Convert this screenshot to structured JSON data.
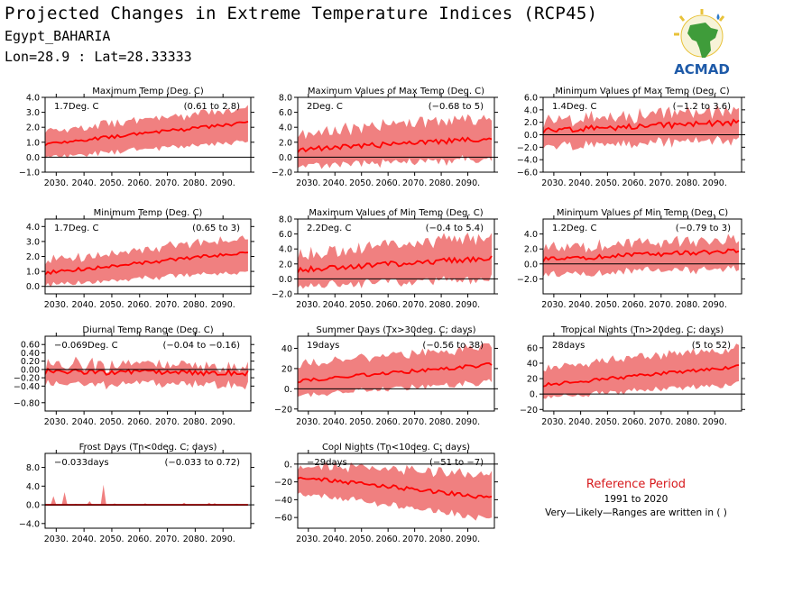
{
  "header": {
    "title": "Projected Changes in Extreme Temperature Indices (RCP45)",
    "location": "Egypt_BAHARIA",
    "coords": "Lon=28.9 : Lat=28.33333"
  },
  "logo": {
    "text": "ACMAD",
    "icon": "acmad-africa-logo"
  },
  "reference": {
    "title": "Reference Period",
    "years": "1991 to 2020",
    "note": "Very—Likely—Ranges are written in ( )"
  },
  "colors": {
    "band": "#f08080",
    "line": "#ff0000",
    "zero": "#000000",
    "ref_title": "#d7191c"
  },
  "chart_data": [
    {
      "type": "area",
      "title": "Maximum Temp (Deg. C)",
      "value_label": "1.7Deg. C",
      "range_label": "(0.61 to 2.8)",
      "xticks": [
        "2030.",
        "2040.",
        "2050.",
        "2060.",
        "2070.",
        "2080.",
        "2090."
      ],
      "x_range": [
        2026,
        2100
      ],
      "ylim": [
        -1.0,
        4.0
      ],
      "yticks": [
        -1.0,
        0.0,
        1.0,
        2.0,
        3.0,
        4.0
      ],
      "ytick_labels": [
        "−1.0",
        "0.0",
        "1.0",
        "2.0",
        "3.0",
        "4.0"
      ],
      "trend": [
        0.9,
        2.3
      ],
      "band_low": [
        0.1,
        1.1
      ],
      "band_high": [
        1.8,
        3.2
      ],
      "noise": 0.25
    },
    {
      "type": "area",
      "title": "Maximum Values of Max Temp (Deg. C)",
      "value_label": "2Deg. C",
      "range_label": "(−0.68 to 5)",
      "xticks": [
        "2030.",
        "2040.",
        "2050.",
        "2060.",
        "2070.",
        "2080.",
        "2090."
      ],
      "x_range": [
        2026,
        2100
      ],
      "ylim": [
        -2.0,
        8.0
      ],
      "yticks": [
        -2.0,
        0.0,
        2.0,
        4.0,
        6.0,
        8.0
      ],
      "ytick_labels": [
        "−2.0",
        "0.0",
        "2.0",
        "4.0",
        "6.0",
        "8.0"
      ],
      "trend": [
        1.0,
        2.5
      ],
      "band_low": [
        -0.8,
        0.0
      ],
      "band_high": [
        3.0,
        5.5
      ],
      "noise": 0.8
    },
    {
      "type": "area",
      "title": "Minimum Values of Max Temp (Deg. C)",
      "value_label": "1.4Deg. C",
      "range_label": "(−1.2 to 3.6)",
      "xticks": [
        "2030.",
        "2040.",
        "2050.",
        "2060.",
        "2070.",
        "2080.",
        "2090."
      ],
      "x_range": [
        2026,
        2100
      ],
      "ylim": [
        -6.0,
        6.0
      ],
      "yticks": [
        -6.0,
        -4.0,
        -2.0,
        0.0,
        2.0,
        4.0,
        6.0
      ],
      "ytick_labels": [
        "−6.0",
        "−4.0",
        "−2.0",
        "0.0",
        "2.0",
        "4.0",
        "6.0"
      ],
      "trend": [
        0.7,
        2.0
      ],
      "band_low": [
        -1.5,
        -0.5
      ],
      "band_high": [
        2.2,
        4.0
      ],
      "noise": 1.0
    },
    {
      "type": "area",
      "title": "Minimum Temp (Deg. C)",
      "value_label": "1.7Deg. C",
      "range_label": "(0.65 to 3)",
      "xticks": [
        "2030.",
        "2040.",
        "2050.",
        "2060.",
        "2070.",
        "2080.",
        "2090."
      ],
      "x_range": [
        2026,
        2100
      ],
      "ylim": [
        -0.5,
        4.5
      ],
      "yticks": [
        0.0,
        1.0,
        2.0,
        3.0,
        4.0
      ],
      "ytick_labels": [
        "0.0",
        "1.0",
        "2.0",
        "3.0",
        "4.0"
      ],
      "trend": [
        0.9,
        2.3
      ],
      "band_low": [
        0.2,
        1.1
      ],
      "band_high": [
        1.7,
        3.3
      ],
      "noise": 0.25
    },
    {
      "type": "area",
      "title": "Maximum Values of Min Temp (Deg. C)",
      "value_label": "2.2Deg. C",
      "range_label": "(−0.4 to 5.4)",
      "xticks": [
        "2030.",
        "2040.",
        "2050.",
        "2060.",
        "2070.",
        "2080.",
        "2090."
      ],
      "x_range": [
        2026,
        2100
      ],
      "ylim": [
        -2.0,
        8.0
      ],
      "yticks": [
        -2.0,
        0.0,
        2.0,
        4.0,
        6.0,
        8.0
      ],
      "ytick_labels": [
        "−2.0",
        "0.0",
        "2.0",
        "4.0",
        "6.0",
        "8.0"
      ],
      "trend": [
        1.2,
        2.8
      ],
      "band_low": [
        -0.6,
        0.3
      ],
      "band_high": [
        3.2,
        5.8
      ],
      "noise": 0.8
    },
    {
      "type": "area",
      "title": "Minimum Values of Min Temp (Deg. C)",
      "value_label": "1.2Deg. C",
      "range_label": "(−0.79 to 3)",
      "xticks": [
        "2030.",
        "2040.",
        "2050.",
        "2060.",
        "2070.",
        "2080.",
        "2090."
      ],
      "x_range": [
        2026,
        2100
      ],
      "ylim": [
        -4.0,
        6.0
      ],
      "yticks": [
        -2.0,
        0.0,
        2.0,
        4.0
      ],
      "ytick_labels": [
        "−2.0",
        "0.0",
        "2.0",
        "4.0"
      ],
      "trend": [
        0.6,
        1.8
      ],
      "band_low": [
        -1.2,
        -0.3
      ],
      "band_high": [
        2.0,
        3.4
      ],
      "noise": 0.7
    },
    {
      "type": "area",
      "title": "Diurnal Temp Range (Deg. C)",
      "value_label": "−0.069Deg. C",
      "range_label": "(−0.04 to −0.16)",
      "xticks": [
        "2030.",
        "2040.",
        "2050.",
        "2060.",
        "2070.",
        "2080.",
        "2090."
      ],
      "x_range": [
        2026,
        2100
      ],
      "ylim": [
        -1.0,
        0.8
      ],
      "yticks": [
        -0.8,
        -0.4,
        -0.2,
        0.0,
        0.2,
        0.4,
        0.6
      ],
      "ytick_labels": [
        "−0.80",
        "−0.40",
        "−0.20",
        "0.00",
        "0.20",
        "0.40",
        "0.60"
      ],
      "trend": [
        -0.05,
        -0.08
      ],
      "band_low": [
        -0.3,
        -0.3
      ],
      "band_high": [
        0.12,
        0.1
      ],
      "noise": 0.15
    },
    {
      "type": "area",
      "title": "Summer Days (Tx>30deg. C; days)",
      "value_label": "19days",
      "range_label": "(−0.56 to 38)",
      "xticks": [
        "2030.",
        "2040.",
        "2050.",
        "2060.",
        "2070.",
        "2080.",
        "2090."
      ],
      "x_range": [
        2026,
        2100
      ],
      "ylim": [
        -22,
        52
      ],
      "yticks": [
        -20,
        0,
        20,
        40
      ],
      "ytick_labels": [
        "−20",
        "0.",
        "20",
        "40"
      ],
      "trend": [
        8,
        24
      ],
      "band_low": [
        -5,
        8
      ],
      "band_high": [
        25,
        42
      ],
      "noise": 4
    },
    {
      "type": "area",
      "title": "Tropical Nights (Tn>20deg. C; days)",
      "value_label": "28days",
      "range_label": "(5 to 52)",
      "xticks": [
        "2030.",
        "2040.",
        "2050.",
        "2060.",
        "2070.",
        "2080.",
        "2090."
      ],
      "x_range": [
        2026,
        2100
      ],
      "ylim": [
        -22,
        75
      ],
      "yticks": [
        -20,
        0,
        20,
        40,
        60
      ],
      "ytick_labels": [
        "−20",
        "0.",
        "20",
        "40",
        "60"
      ],
      "trend": [
        12,
        36
      ],
      "band_low": [
        -2,
        15
      ],
      "band_high": [
        35,
        60
      ],
      "noise": 5
    },
    {
      "type": "area",
      "title": "Frost Days (Tn<0deg. C; days)",
      "value_label": "−0.033days",
      "range_label": "(−0.033 to 0.72)",
      "xticks": [
        "2030.",
        "2040.",
        "2050.",
        "2060.",
        "2070.",
        "2080.",
        "2090."
      ],
      "x_range": [
        2026,
        2100
      ],
      "ylim": [
        -5.0,
        11.0
      ],
      "yticks": [
        -4.0,
        0.0,
        4.0,
        8.0
      ],
      "ytick_labels": [
        "−4.0",
        "0.0",
        "4.0",
        "8.0"
      ],
      "trend": [
        0.05,
        0.0
      ],
      "band_low": [
        0,
        0
      ],
      "band_high": [
        1.5,
        0.3
      ],
      "noise": 1.5,
      "spiky": true
    },
    {
      "type": "area",
      "title": "Cool Nights (Tn<10deg. C; days)",
      "value_label": "−29days",
      "range_label": "(−51 to −7)",
      "xticks": [
        "2030.",
        "2040.",
        "2050.",
        "2060.",
        "2070.",
        "2080.",
        "2090."
      ],
      "x_range": [
        2026,
        2100
      ],
      "ylim": [
        -72,
        12
      ],
      "yticks": [
        -60,
        -40,
        -20,
        0
      ],
      "ytick_labels": [
        "−60",
        "−40",
        "−20",
        "0."
      ],
      "trend": [
        -14,
        -38
      ],
      "band_low": [
        -30,
        -60
      ],
      "band_high": [
        0,
        -12
      ],
      "noise": 5
    }
  ]
}
